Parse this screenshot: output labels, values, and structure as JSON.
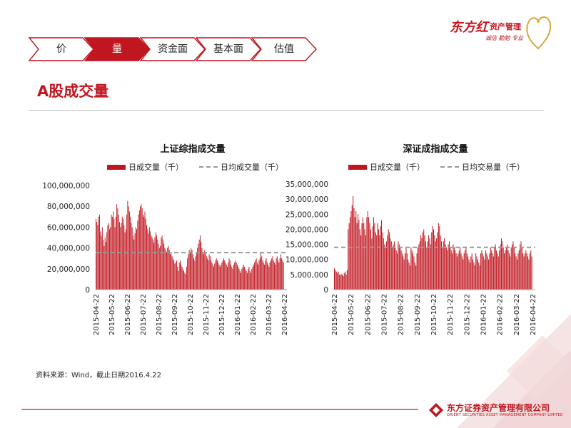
{
  "brand": {
    "name": "东方红",
    "sub": "资产管理",
    "slogan": "诚信 勤勉 专业",
    "footer_name": "东方证券资产管理有限公司",
    "footer_en": "ORIENT SECURITIES ASSET MANAGEMENT COMPANY LIMITED",
    "color": "#c0161f"
  },
  "nav": {
    "tabs": [
      {
        "label": "价",
        "active": false
      },
      {
        "label": "量",
        "active": true
      },
      {
        "label": "资金面",
        "active": false
      },
      {
        "label": "基本面",
        "active": false
      },
      {
        "label": "估值",
        "active": false
      }
    ]
  },
  "page": {
    "title": "A股成交量",
    "source": "资料来源：Wind，截止日期2016.4.22"
  },
  "chart_data": [
    {
      "type": "bar",
      "title": "上证综指成交量",
      "bar_color": "#c0161f",
      "line_color": "#999999",
      "legend_bar": "日成交量（千）",
      "legend_line": "日均成交量（千）",
      "ylim": [
        0,
        100000000
      ],
      "yticks": [
        "0",
        "20,000,000",
        "40,000,000",
        "60,000,000",
        "80,000,000",
        "100,000,000"
      ],
      "xticks": [
        "2015-04-22",
        "2015-05-22",
        "2015-06-22",
        "2015-07-22",
        "2015-08-22",
        "2015-09-22",
        "2015-10-22",
        "2015-11-22",
        "2015-12-22",
        "2016-01-22",
        "2016-02-22",
        "2016-03-22",
        "2016-04-22"
      ],
      "average": 35500000,
      "values": [
        68000000,
        65000000,
        62000000,
        70000000,
        72000000,
        56000000,
        52000000,
        60000000,
        48000000,
        42000000,
        50000000,
        46000000,
        55000000,
        62000000,
        64000000,
        58000000,
        60000000,
        72000000,
        70000000,
        75000000,
        68000000,
        60000000,
        70000000,
        82000000,
        78000000,
        72000000,
        65000000,
        60000000,
        64000000,
        70000000,
        68000000,
        62000000,
        55000000,
        58000000,
        72000000,
        85000000,
        80000000,
        75000000,
        70000000,
        64000000,
        60000000,
        52000000,
        48000000,
        54000000,
        60000000,
        58000000,
        66000000,
        72000000,
        76000000,
        80000000,
        82000000,
        78000000,
        72000000,
        70000000,
        75000000,
        68000000,
        62000000,
        58000000,
        54000000,
        60000000,
        56000000,
        52000000,
        50000000,
        48000000,
        45000000,
        50000000,
        55000000,
        52000000,
        48000000,
        44000000,
        40000000,
        42000000,
        50000000,
        52000000,
        48000000,
        44000000,
        40000000,
        38000000,
        36000000,
        40000000,
        42000000,
        38000000,
        34000000,
        36000000,
        32000000,
        30000000,
        28000000,
        25000000,
        26000000,
        28000000,
        22000000,
        18000000,
        26000000,
        28000000,
        24000000,
        22000000,
        20000000,
        18000000,
        16000000,
        15000000,
        22000000,
        30000000,
        34000000,
        38000000,
        36000000,
        40000000,
        38000000,
        34000000,
        30000000,
        28000000,
        32000000,
        36000000,
        40000000,
        44000000,
        48000000,
        52000000,
        46000000,
        40000000,
        36000000,
        34000000,
        38000000,
        36000000,
        32000000,
        30000000,
        28000000,
        34000000,
        32000000,
        28000000,
        26000000,
        24000000,
        22000000,
        25000000,
        28000000,
        30000000,
        28000000,
        26000000,
        24000000,
        22000000,
        24000000,
        26000000,
        28000000,
        30000000,
        28000000,
        26000000,
        24000000,
        22000000,
        26000000,
        30000000,
        28000000,
        24000000,
        22000000,
        20000000,
        24000000,
        26000000,
        28000000,
        26000000,
        24000000,
        22000000,
        20000000,
        18000000,
        16000000,
        20000000,
        22000000,
        24000000,
        22000000,
        20000000,
        18000000,
        16000000,
        20000000,
        22000000,
        18000000,
        16000000,
        20000000,
        22000000,
        24000000,
        26000000,
        28000000,
        30000000,
        26000000,
        24000000,
        28000000,
        30000000,
        36000000,
        32000000,
        28000000,
        26000000,
        24000000,
        28000000,
        30000000,
        26000000,
        24000000,
        22000000,
        26000000,
        28000000,
        30000000,
        32000000,
        28000000,
        26000000,
        24000000,
        30000000,
        32000000,
        28000000,
        26000000,
        30000000,
        34000000,
        30000000,
        28000000,
        26000000
      ]
    },
    {
      "type": "bar",
      "title": "深证成指成交量",
      "bar_color": "#c0161f",
      "line_color": "#999999",
      "legend_bar": "日成交量（千）",
      "legend_line": "日均交易量（千）",
      "ylim": [
        0,
        35000000
      ],
      "yticks": [
        "0",
        "5,000,000",
        "10,000,000",
        "15,000,000",
        "20,000,000",
        "25,000,000",
        "30,000,000",
        "35,000,000"
      ],
      "xticks": [
        "2015-04-22",
        "2015-05-22",
        "2015-06-22",
        "2015-07-22",
        "2015-08-22",
        "2015-09-22",
        "2015-10-22",
        "2015-11-22",
        "2015-12-22",
        "2016-01-22",
        "2016-02-22",
        "2016-03-22",
        "2016-04-22"
      ],
      "average": 14000000,
      "values": [
        7000000,
        6500000,
        6000000,
        5500000,
        6000000,
        5000000,
        4800000,
        5200000,
        5000000,
        4500000,
        5500000,
        6000000,
        5000000,
        6500000,
        20000000,
        22000000,
        24000000,
        26000000,
        28000000,
        31000000,
        27000000,
        24000000,
        26000000,
        22000000,
        25000000,
        23000000,
        20000000,
        18000000,
        22000000,
        24000000,
        22000000,
        20000000,
        18000000,
        24000000,
        26000000,
        24000000,
        22000000,
        20000000,
        17000000,
        21000000,
        24000000,
        22000000,
        19000000,
        18000000,
        22000000,
        20000000,
        18000000,
        21000000,
        23000000,
        19000000,
        17000000,
        15000000,
        14000000,
        16000000,
        18000000,
        20000000,
        19000000,
        17000000,
        16000000,
        14000000,
        15000000,
        16000000,
        14000000,
        13000000,
        12000000,
        16000000,
        15000000,
        14000000,
        13000000,
        12000000,
        11000000,
        10000000,
        12000000,
        14000000,
        12000000,
        10000000,
        9000000,
        8000000,
        14000000,
        13000000,
        12000000,
        11000000,
        9000000,
        8000000,
        12000000,
        14000000,
        15000000,
        16000000,
        18000000,
        17000000,
        19000000,
        20000000,
        18000000,
        16000000,
        14000000,
        16000000,
        18000000,
        17000000,
        15000000,
        19000000,
        21000000,
        20000000,
        18000000,
        16000000,
        17000000,
        19000000,
        22000000,
        21000000,
        18000000,
        16000000,
        14000000,
        16000000,
        17000000,
        15000000,
        14000000,
        13000000,
        15000000,
        16000000,
        14000000,
        13000000,
        12000000,
        15000000,
        14000000,
        13000000,
        12000000,
        11000000,
        12000000,
        13000000,
        14000000,
        12000000,
        11000000,
        10000000,
        12000000,
        13000000,
        14000000,
        12000000,
        11000000,
        10000000,
        9000000,
        11000000,
        12000000,
        10000000,
        9000000,
        8000000,
        12000000,
        11000000,
        10000000,
        9000000,
        8000000,
        12000000,
        13000000,
        12000000,
        11000000,
        10000000,
        13000000,
        12000000,
        11000000,
        10000000,
        12000000,
        14000000,
        13000000,
        12000000,
        11000000,
        14000000,
        15000000,
        13000000,
        12000000,
        11000000,
        13000000,
        15000000,
        17000000,
        16000000,
        14000000,
        12000000,
        13000000,
        14000000,
        15000000,
        13000000,
        12000000,
        11000000,
        14000000,
        15000000,
        16000000,
        14000000,
        12000000,
        11000000,
        10000000,
        12000000,
        13000000,
        15000000,
        16000000,
        14000000,
        12000000,
        11000000,
        12000000,
        13000000,
        12000000,
        11000000,
        10000000,
        12000000,
        13000000,
        11000000
      ]
    }
  ]
}
